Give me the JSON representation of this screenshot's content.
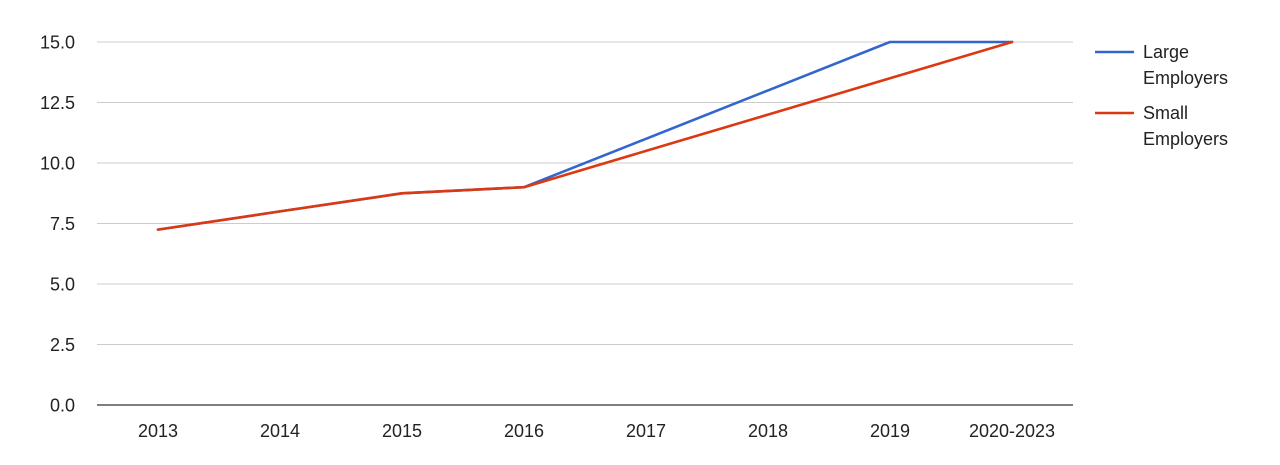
{
  "chart_data": {
    "type": "line",
    "title": "",
    "xlabel": "",
    "ylabel": "",
    "categories": [
      "2013",
      "2014",
      "2015",
      "2016",
      "2017",
      "2018",
      "2019",
      "2020-2023"
    ],
    "series": [
      {
        "name": "Large Employers",
        "name_lines": [
          "Large",
          "Employers"
        ],
        "color": "#3366cc",
        "values": [
          7.25,
          8.0,
          8.75,
          9.0,
          11.0,
          13.0,
          15.0,
          15.0
        ]
      },
      {
        "name": "Small Employers",
        "name_lines": [
          "Small",
          "Employers"
        ],
        "color": "#dc3912",
        "values": [
          7.25,
          8.0,
          8.75,
          9.0,
          10.5,
          12.0,
          13.5,
          15.0
        ]
      }
    ],
    "ylim": [
      0,
      15
    ],
    "yticks": [
      "0.0",
      "2.5",
      "5.0",
      "7.5",
      "10.0",
      "12.5",
      "15.0"
    ],
    "grid": true,
    "legend_position": "right"
  }
}
